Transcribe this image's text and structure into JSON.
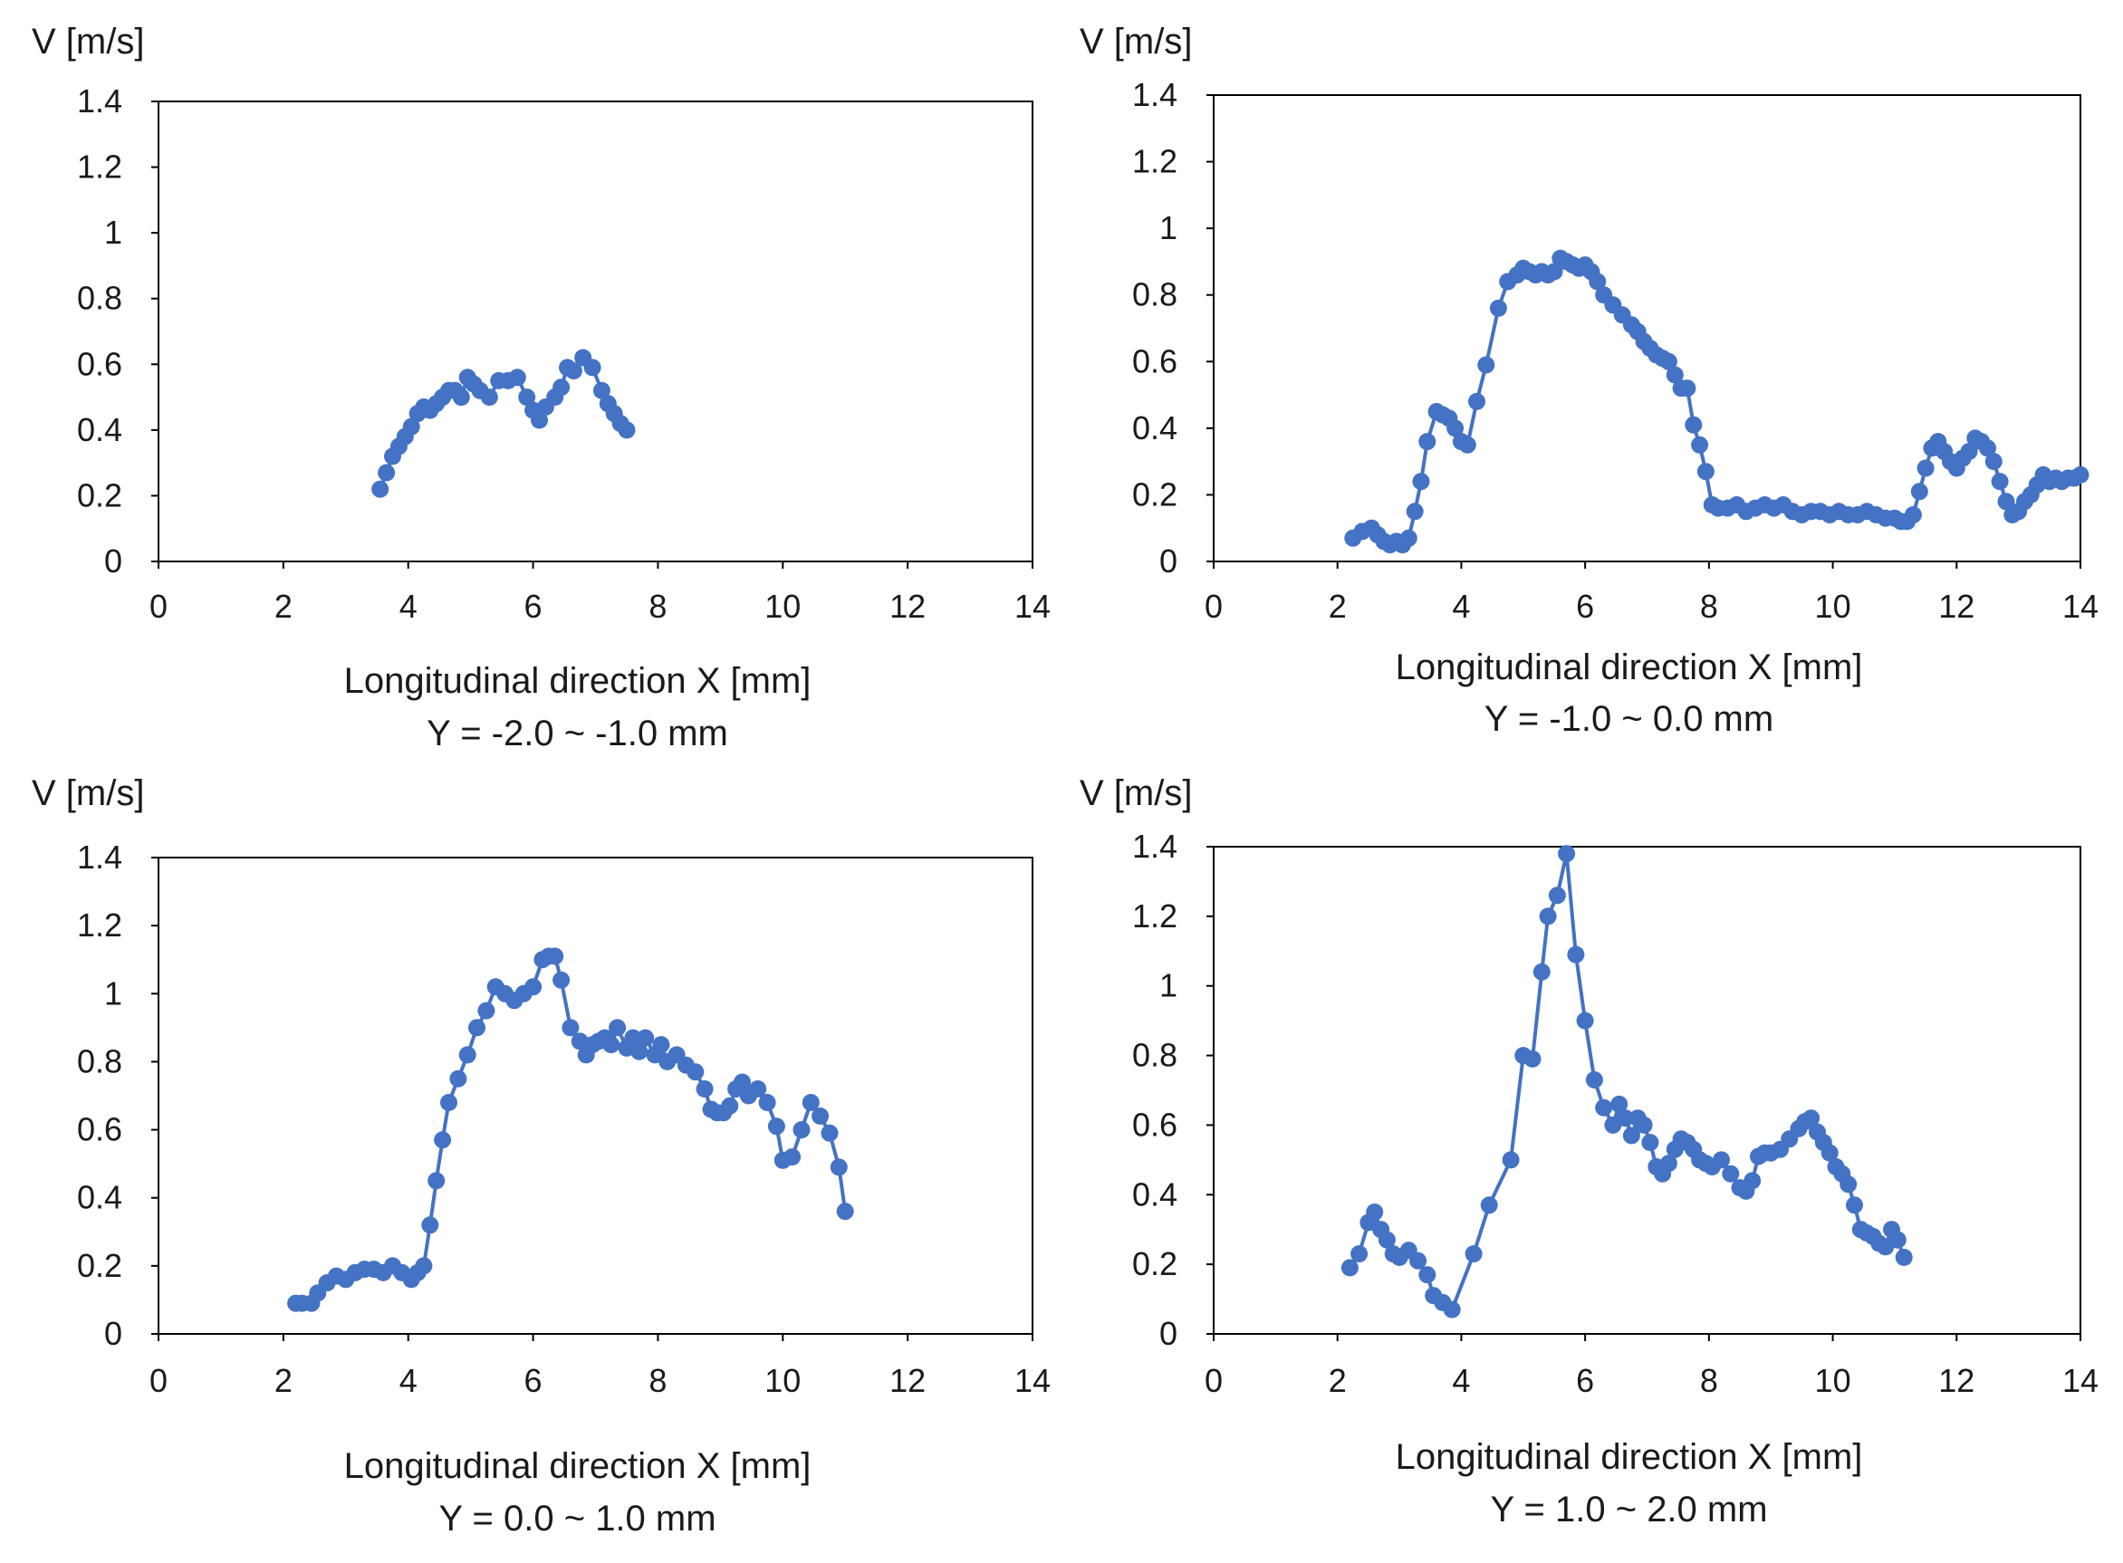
{
  "series_color": "#4472C4",
  "chart_data": [
    {
      "type": "line",
      "marker": "circle",
      "ylabel": "V [m/s]",
      "xlabel": "Longitudinal direction X [mm]",
      "subtitle": "Y = -2.0 ~ -1.0 mm",
      "xlim": [
        0,
        14
      ],
      "ylim": [
        0,
        1.4
      ],
      "xticks": [
        "0",
        "2",
        "4",
        "6",
        "8",
        "10",
        "12",
        "14"
      ],
      "yticks": [
        "0",
        "0.2",
        "0.4",
        "0.6",
        "0.8",
        "1",
        "1.2",
        "1.4"
      ],
      "grid": false,
      "series": [
        {
          "name": "V",
          "x": [
            3.55,
            3.65,
            3.75,
            3.85,
            3.95,
            4.05,
            4.15,
            4.25,
            4.35,
            4.45,
            4.55,
            4.65,
            4.75,
            4.85,
            4.95,
            5.05,
            5.15,
            5.3,
            5.45,
            5.6,
            5.75,
            5.9,
            6.0,
            6.1,
            6.2,
            6.35,
            6.45,
            6.55,
            6.65,
            6.8,
            6.95,
            7.1,
            7.2,
            7.3,
            7.4,
            7.5
          ],
          "y": [
            0.22,
            0.27,
            0.32,
            0.35,
            0.38,
            0.41,
            0.45,
            0.47,
            0.46,
            0.48,
            0.5,
            0.52,
            0.52,
            0.5,
            0.56,
            0.54,
            0.52,
            0.5,
            0.55,
            0.55,
            0.56,
            0.5,
            0.46,
            0.43,
            0.47,
            0.5,
            0.53,
            0.59,
            0.58,
            0.62,
            0.59,
            0.52,
            0.48,
            0.45,
            0.42,
            0.4
          ]
        }
      ]
    },
    {
      "type": "line",
      "marker": "circle",
      "ylabel": "V [m/s]",
      "xlabel": "Longitudinal direction X [mm]",
      "subtitle": "Y = -1.0 ~ 0.0 mm",
      "xlim": [
        0,
        14
      ],
      "ylim": [
        0,
        1.4
      ],
      "xticks": [
        "0",
        "2",
        "4",
        "6",
        "8",
        "10",
        "12",
        "14"
      ],
      "yticks": [
        "0",
        "0.2",
        "0.4",
        "0.6",
        "0.8",
        "1",
        "1.2",
        "1.4"
      ],
      "grid": false,
      "series": [
        {
          "name": "V",
          "x": [
            2.25,
            2.4,
            2.55,
            2.65,
            2.75,
            2.85,
            2.95,
            3.05,
            3.15,
            3.25,
            3.35,
            3.45,
            3.6,
            3.7,
            3.8,
            3.9,
            4.0,
            4.1,
            4.25,
            4.4,
            4.6,
            4.75,
            4.9,
            5.0,
            5.1,
            5.2,
            5.3,
            5.4,
            5.5,
            5.6,
            5.7,
            5.8,
            5.9,
            6.0,
            6.1,
            6.2,
            6.3,
            6.45,
            6.6,
            6.75,
            6.85,
            6.95,
            7.05,
            7.15,
            7.25,
            7.35,
            7.45,
            7.55,
            7.65,
            7.75,
            7.85,
            7.95,
            8.05,
            8.15,
            8.3,
            8.45,
            8.6,
            8.75,
            8.9,
            9.05,
            9.2,
            9.35,
            9.5,
            9.65,
            9.8,
            9.95,
            10.1,
            10.25,
            10.4,
            10.55,
            10.7,
            10.85,
            11.0,
            11.1,
            11.2,
            11.3,
            11.4,
            11.5,
            11.6,
            11.7,
            11.8,
            11.9,
            12.0,
            12.1,
            12.2,
            12.3,
            12.4,
            12.5,
            12.6,
            12.7,
            12.8,
            12.9,
            13.0,
            13.1,
            13.2,
            13.3,
            13.4,
            13.5,
            13.6,
            13.7,
            13.8,
            13.9,
            14.0
          ],
          "y": [
            0.07,
            0.09,
            0.1,
            0.08,
            0.06,
            0.05,
            0.06,
            0.05,
            0.07,
            0.15,
            0.24,
            0.36,
            0.45,
            0.44,
            0.43,
            0.4,
            0.36,
            0.35,
            0.48,
            0.59,
            0.76,
            0.84,
            0.86,
            0.88,
            0.87,
            0.86,
            0.87,
            0.86,
            0.87,
            0.91,
            0.9,
            0.89,
            0.88,
            0.89,
            0.87,
            0.84,
            0.8,
            0.77,
            0.74,
            0.71,
            0.69,
            0.66,
            0.64,
            0.62,
            0.61,
            0.6,
            0.56,
            0.52,
            0.52,
            0.41,
            0.35,
            0.27,
            0.17,
            0.16,
            0.16,
            0.17,
            0.15,
            0.16,
            0.17,
            0.16,
            0.17,
            0.15,
            0.14,
            0.15,
            0.15,
            0.14,
            0.15,
            0.14,
            0.14,
            0.15,
            0.14,
            0.13,
            0.13,
            0.12,
            0.12,
            0.14,
            0.21,
            0.28,
            0.34,
            0.36,
            0.33,
            0.3,
            0.28,
            0.31,
            0.33,
            0.37,
            0.36,
            0.34,
            0.3,
            0.24,
            0.18,
            0.14,
            0.15,
            0.18,
            0.2,
            0.23,
            0.26,
            0.24,
            0.25,
            0.24,
            0.25,
            0.25,
            0.26
          ]
        }
      ]
    },
    {
      "type": "line",
      "marker": "circle",
      "ylabel": "V [m/s]",
      "xlabel": "Longitudinal direction X [mm]",
      "subtitle": "Y = 0.0 ~ 1.0 mm",
      "xlim": [
        0,
        14
      ],
      "ylim": [
        0,
        1.4
      ],
      "xticks": [
        "0",
        "2",
        "4",
        "6",
        "8",
        "10",
        "12",
        "14"
      ],
      "yticks": [
        "0",
        "0.2",
        "0.4",
        "0.6",
        "0.8",
        "1",
        "1.2",
        "1.4"
      ],
      "grid": false,
      "series": [
        {
          "name": "V",
          "x": [
            2.2,
            2.3,
            2.45,
            2.55,
            2.7,
            2.85,
            3.0,
            3.15,
            3.3,
            3.45,
            3.6,
            3.75,
            3.9,
            4.05,
            4.15,
            4.25,
            4.35,
            4.45,
            4.55,
            4.65,
            4.8,
            4.95,
            5.1,
            5.25,
            5.4,
            5.55,
            5.7,
            5.85,
            6.0,
            6.15,
            6.25,
            6.35,
            6.45,
            6.6,
            6.75,
            6.85,
            6.95,
            7.05,
            7.15,
            7.25,
            7.35,
            7.5,
            7.6,
            7.7,
            7.8,
            7.95,
            8.05,
            8.15,
            8.3,
            8.45,
            8.6,
            8.75,
            8.85,
            8.95,
            9.05,
            9.15,
            9.25,
            9.35,
            9.45,
            9.6,
            9.75,
            9.9,
            10.0,
            10.15,
            10.3,
            10.45,
            10.6,
            10.75,
            10.9,
            11.0
          ],
          "y": [
            0.09,
            0.09,
            0.09,
            0.12,
            0.15,
            0.17,
            0.16,
            0.18,
            0.19,
            0.19,
            0.18,
            0.2,
            0.18,
            0.16,
            0.18,
            0.2,
            0.32,
            0.45,
            0.57,
            0.68,
            0.75,
            0.82,
            0.9,
            0.95,
            1.02,
            1.0,
            0.98,
            1.0,
            1.02,
            1.1,
            1.11,
            1.11,
            1.04,
            0.9,
            0.86,
            0.82,
            0.85,
            0.86,
            0.87,
            0.85,
            0.9,
            0.84,
            0.87,
            0.83,
            0.87,
            0.82,
            0.85,
            0.8,
            0.82,
            0.79,
            0.77,
            0.72,
            0.66,
            0.65,
            0.65,
            0.67,
            0.72,
            0.74,
            0.7,
            0.72,
            0.68,
            0.61,
            0.51,
            0.52,
            0.6,
            0.68,
            0.64,
            0.59,
            0.49,
            0.36
          ]
        }
      ]
    },
    {
      "type": "line",
      "marker": "circle",
      "ylabel": "V [m/s]",
      "xlabel": "Longitudinal direction X [mm]",
      "subtitle": "Y = 1.0 ~ 2.0 mm",
      "xlim": [
        0,
        14
      ],
      "ylim": [
        0,
        1.4
      ],
      "xticks": [
        "0",
        "2",
        "4",
        "6",
        "8",
        "10",
        "12",
        "14"
      ],
      "yticks": [
        "0",
        "0.2",
        "0.4",
        "0.6",
        "0.8",
        "1",
        "1.2",
        "1.4"
      ],
      "grid": false,
      "series": [
        {
          "name": "V",
          "x": [
            2.2,
            2.35,
            2.5,
            2.6,
            2.7,
            2.8,
            2.9,
            3.0,
            3.15,
            3.3,
            3.45,
            3.55,
            3.7,
            3.85,
            4.2,
            4.45,
            4.8,
            5.0,
            5.15,
            5.3,
            5.4,
            5.55,
            5.7,
            5.85,
            6.0,
            6.15,
            6.3,
            6.45,
            6.55,
            6.65,
            6.75,
            6.85,
            6.95,
            7.05,
            7.15,
            7.25,
            7.35,
            7.45,
            7.55,
            7.65,
            7.75,
            7.85,
            7.95,
            8.05,
            8.2,
            8.35,
            8.5,
            8.6,
            8.7,
            8.8,
            8.9,
            9.0,
            9.15,
            9.3,
            9.45,
            9.55,
            9.65,
            9.75,
            9.85,
            9.95,
            10.05,
            10.15,
            10.25,
            10.35,
            10.45,
            10.55,
            10.65,
            10.75,
            10.85,
            10.95,
            11.05,
            11.15
          ],
          "y": [
            0.19,
            0.23,
            0.32,
            0.35,
            0.3,
            0.27,
            0.23,
            0.22,
            0.24,
            0.21,
            0.17,
            0.11,
            0.09,
            0.07,
            0.23,
            0.37,
            0.5,
            0.8,
            0.79,
            1.04,
            1.2,
            1.26,
            1.38,
            1.09,
            0.9,
            0.73,
            0.65,
            0.6,
            0.66,
            0.62,
            0.57,
            0.62,
            0.6,
            0.55,
            0.48,
            0.46,
            0.49,
            0.53,
            0.56,
            0.55,
            0.53,
            0.5,
            0.49,
            0.48,
            0.5,
            0.46,
            0.42,
            0.41,
            0.44,
            0.51,
            0.52,
            0.52,
            0.53,
            0.56,
            0.59,
            0.61,
            0.62,
            0.58,
            0.55,
            0.52,
            0.48,
            0.46,
            0.43,
            0.37,
            0.3,
            0.29,
            0.28,
            0.26,
            0.25,
            0.3,
            0.27,
            0.22
          ]
        }
      ]
    }
  ]
}
